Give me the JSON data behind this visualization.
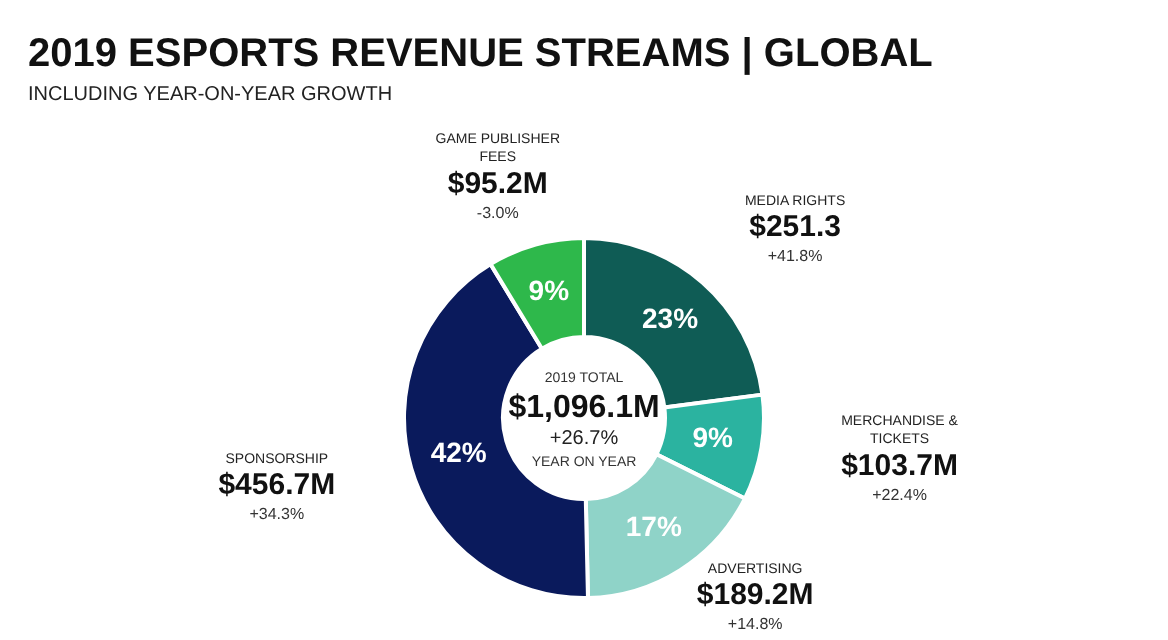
{
  "chart_data": {
    "type": "donut",
    "title": "2019 ESPORTS REVENUE STREAMS | GLOBAL",
    "subtitle": "INCLUDING YEAR-ON-YEAR GROWTH",
    "categories": [
      "MEDIA RIGHTS",
      "MERCHANDISE & TICKETS",
      "ADVERTISING",
      "SPONSORSHIP",
      "GAME PUBLISHER FEES"
    ],
    "values": [
      251.3,
      103.7,
      189.2,
      456.7,
      95.2
    ],
    "colors": [
      "#0f5c55",
      "#2bb3a0",
      "#8fd3c8",
      "#0a1a5c",
      "#2eb84b"
    ],
    "value_labels": [
      "$251.3",
      "$103.7M",
      "$189.2M",
      "$456.7M",
      "$95.2M"
    ],
    "annotations": [
      {
        "text": "23%",
        "x": "MEDIA RIGHTS"
      },
      {
        "text": "+41.8%",
        "x": "MEDIA RIGHTS"
      },
      {
        "text": "9%",
        "x": "MERCHANDISE & TICKETS"
      },
      {
        "text": "+22.4%",
        "x": "MERCHANDISE & TICKETS"
      },
      {
        "text": "17%",
        "x": "ADVERTISING"
      },
      {
        "text": "+14.8%",
        "x": "ADVERTISING"
      },
      {
        "text": "42%",
        "x": "SPONSORSHIP"
      },
      {
        "text": "+34.3%",
        "x": "SPONSORSHIP"
      },
      {
        "text": "9%",
        "x": "GAME PUBLISHER FEES"
      },
      {
        "text": "-3.0%",
        "x": "GAME PUBLISHER FEES"
      },
      "2019 TOTAL",
      "$1,096.1M",
      "+26.7%",
      "YEAR ON YEAR"
    ],
    "legend": false
  }
}
